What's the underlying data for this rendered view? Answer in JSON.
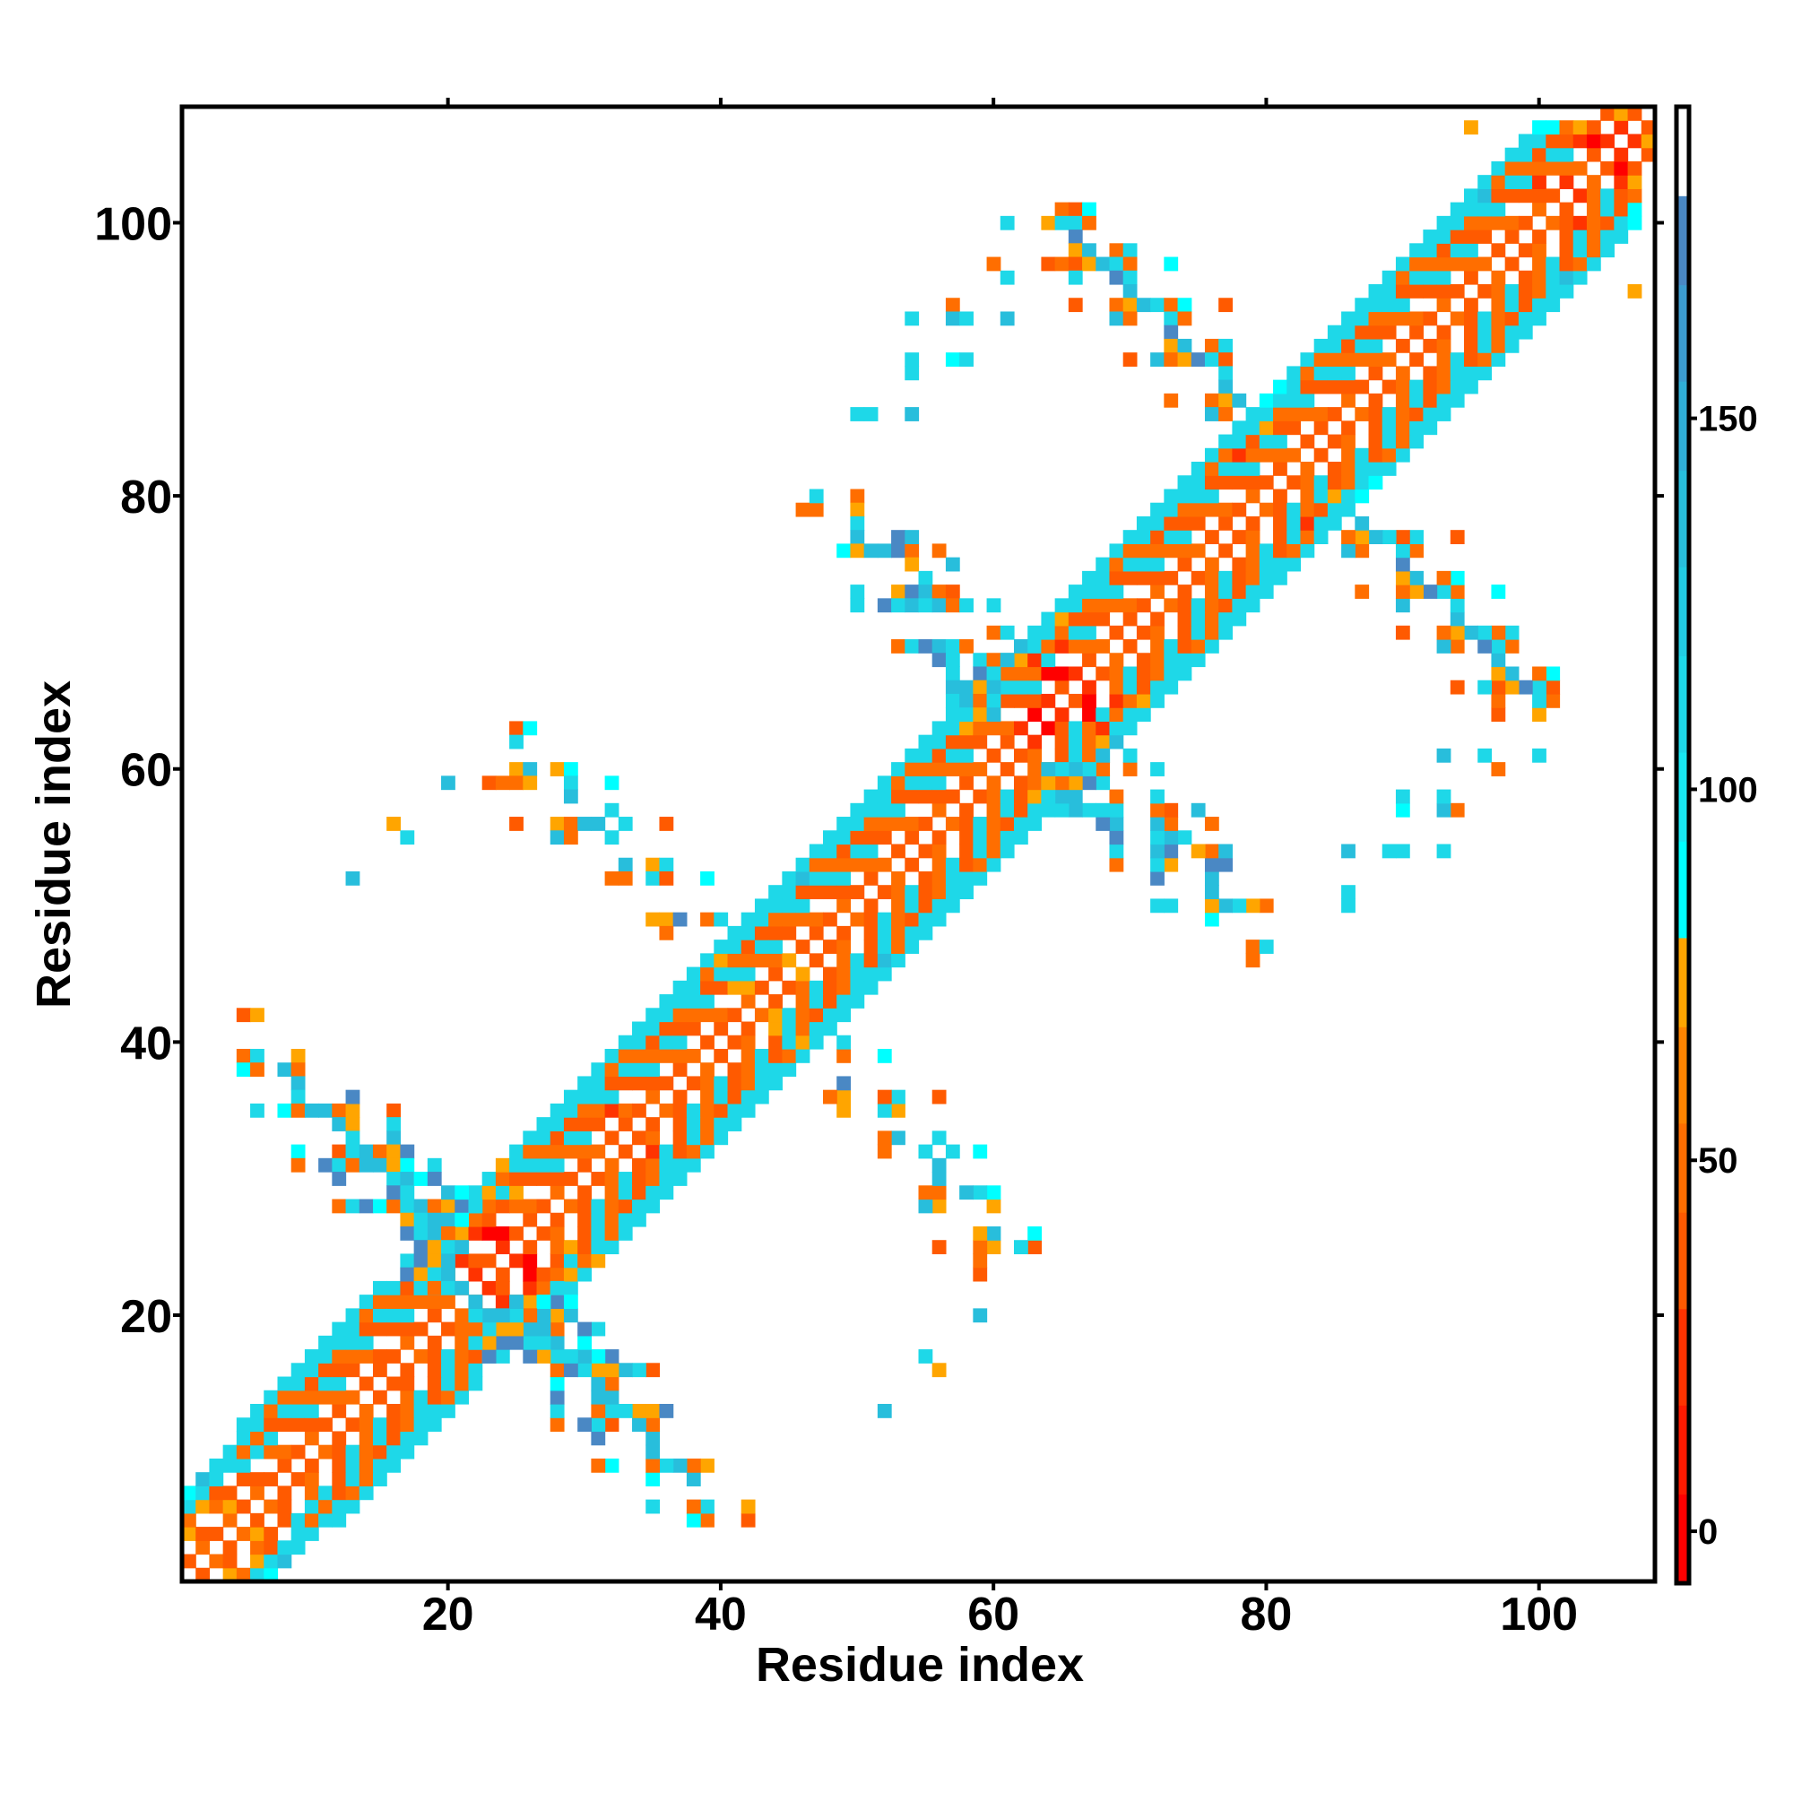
{
  "chart_data": {
    "type": "heatmap",
    "title": "",
    "xlabel": "Residue index",
    "ylabel": "Residue index",
    "xlim": [
      0.5,
      108.5
    ],
    "ylim": [
      0.5,
      108.5
    ],
    "xticks": [
      20,
      40,
      60,
      80,
      100
    ],
    "yticks": [
      20,
      40,
      60,
      80,
      100
    ],
    "symmetric": true,
    "grid": false,
    "colorbar": {
      "range": [
        -7,
        192
      ],
      "ticks": [
        0,
        50,
        100,
        150
      ],
      "bands": [
        {
          "from": -7,
          "to": 5,
          "color": "#ff0000"
        },
        {
          "from": 5,
          "to": 17,
          "color": "#ff1a00"
        },
        {
          "from": 17,
          "to": 30,
          "color": "#ff3300"
        },
        {
          "from": 30,
          "to": 43,
          "color": "#ff5a00"
        },
        {
          "from": 43,
          "to": 55,
          "color": "#ff6e00"
        },
        {
          "from": 55,
          "to": 68,
          "color": "#ff8400"
        },
        {
          "from": 68,
          "to": 80,
          "color": "#ffa500"
        },
        {
          "from": 80,
          "to": 93,
          "color": "#00ffff"
        },
        {
          "from": 93,
          "to": 105,
          "color": "#18e8f2"
        },
        {
          "from": 105,
          "to": 118,
          "color": "#1ed8e8"
        },
        {
          "from": 118,
          "to": 130,
          "color": "#22cce2"
        },
        {
          "from": 130,
          "to": 143,
          "color": "#28bedc"
        },
        {
          "from": 143,
          "to": 155,
          "color": "#30aed6"
        },
        {
          "from": 155,
          "to": 168,
          "color": "#3c9ccf"
        },
        {
          "from": 168,
          "to": 180,
          "color": "#4a88c4"
        },
        {
          "from": 180,
          "to": 192,
          "color": "#ffffff"
        }
      ]
    },
    "value_codes": {
      "R": 0,
      "r": 24,
      "o": 36,
      "O": 49,
      "y": 74,
      "c": 86,
      "t": 112,
      "s": 140,
      "b": 172
    },
    "band_note": "band[i-1][k] = value code at (i, i+k+1); '.' = no value",
    "band": [
      "o.yOtc.",
      "Oo.yts.",
      "o.Oott.",
      "Oyo.tt.",
      "o.otOtt",
      "Oo.tOtt",
      "o.OtoOt",
      "oO.otOt",
      "o.otOtt",
      "OotOott",
      "o.Otott",
      "oOtoOtt",
      "O.oOttt",
      "o.OtoOt",
      "oo.otOt",
      "o.otOt.",
      "OotOot.",
      "o.Otyt.",
      "oOtoyst",
      "O.oOtsb",
      "o.rOyts",
      "ro.rOtt",
      "o.RoOyt",
      "rR.otOy",
      "o.Oyott",
      "oO.otOt",
      "o.otOtt",
      "OotOott",
      "o.Otott",
      "oOtoOtt",
      "O.oOttt",
      "o.rtoOt",
      "oO.otOt",
      "o.otOtt",
      "OotOott",
      "o.Otott",
      "oOtoOtt",
      "O.oOttt",
      "o.OtoOt",
      "oO.otyt",
      "o.ytOtt",
      "OytOott",
      "o.Otott",
      "oOtoOtt",
      "y.oOttt",
      "o.Otost",
      "oO.otOt",
      "o.otOtt",
      "OotOott",
      "o.Otott",
      "oOtoOtt",
      "O.oOttt",
      "o.OtoOt",
      "oO.otOt",
      "o.otOtt",
      "OotOott",
      "o.Otott",
      "oOtoytt",
      "O.oOtst",
      "o.OyoOt",
      "oO.otOt",
      "r.otOys",
      "RotOrtt",
      "r.RtOtt",
      "oR.rOyt",
      "r.Otott",
      "oOtoOtt",
      "O.oOttt",
      "o.OtoOt",
      "oO.otOt",
      "o.otOtt",
      "OotOott",
      "o.Otott",
      "oOtoOtt",
      "O.oOttt",
      "o.OtoOt",
      "oO.otOt",
      "o.otrtt",
      "OotOott",
      "o.Otytc",
      "oOtoOtc",
      "O.oOttt",
      "o.OtoOt",
      "oO.otOt",
      "o.otOtt",
      "OotOott",
      "o.Otott",
      "oOtoOtt",
      "O.oOttt",
      "o.OtoOt",
      "oO.otOt",
      "o.otOtt",
      "OotOott",
      "o.Otott",
      "oOtoOtt",
      "O.oOtst",
      "o.OtoOt",
      "oO.otOt",
      "o.otOtt",
      "OorOotc",
      "o.Otoc",
      "rOtoO",
      "O.ry",
      "oRo",
      "r.o",
      "ry",
      "o"
    ],
    "contacts": [
      [
        25,
        63,
        "o"
      ],
      [
        26,
        63,
        "c"
      ],
      [
        25,
        62,
        "t"
      ],
      [
        25,
        60,
        "y"
      ],
      [
        26,
        60,
        "s"
      ],
      [
        28,
        60,
        "y"
      ],
      [
        29,
        60,
        "c"
      ],
      [
        20,
        59,
        "s"
      ],
      [
        23,
        59,
        "o"
      ],
      [
        24,
        59,
        "O"
      ],
      [
        25,
        59,
        "O"
      ],
      [
        26,
        59,
        "y"
      ],
      [
        29,
        59,
        "t"
      ],
      [
        32,
        59,
        "c"
      ],
      [
        29,
        58,
        "s"
      ],
      [
        16,
        56,
        "y"
      ],
      [
        17,
        55,
        "t"
      ],
      [
        25,
        56,
        "o"
      ],
      [
        28,
        56,
        "y"
      ],
      [
        29,
        56,
        "O"
      ],
      [
        30,
        56,
        "s"
      ],
      [
        31,
        56,
        "s"
      ],
      [
        32,
        57,
        "t"
      ],
      [
        33,
        56,
        "t"
      ],
      [
        36,
        56,
        "o"
      ],
      [
        28,
        55,
        "s"
      ],
      [
        29,
        55,
        "O"
      ],
      [
        32,
        55,
        "t"
      ],
      [
        13,
        52,
        "s"
      ],
      [
        33,
        53,
        "s"
      ],
      [
        32,
        52,
        "O"
      ],
      [
        33,
        52,
        "O"
      ],
      [
        35,
        53,
        "y"
      ],
      [
        36,
        53,
        "t"
      ],
      [
        35,
        52,
        "t"
      ],
      [
        36,
        52,
        "o"
      ],
      [
        39,
        52,
        "c"
      ],
      [
        35,
        49,
        "y"
      ],
      [
        36,
        49,
        "y"
      ],
      [
        37,
        49,
        "b"
      ],
      [
        36,
        48,
        "O"
      ],
      [
        39,
        49,
        "O"
      ],
      [
        40,
        49,
        "t"
      ],
      [
        5,
        42,
        "o"
      ],
      [
        6,
        42,
        "y"
      ],
      [
        5,
        39,
        "O"
      ],
      [
        6,
        39,
        "t"
      ],
      [
        9,
        39,
        "y"
      ],
      [
        5,
        38,
        "c"
      ],
      [
        6,
        38,
        "O"
      ],
      [
        8,
        38,
        "s"
      ],
      [
        9,
        38,
        "O"
      ],
      [
        9,
        37,
        "s"
      ],
      [
        9,
        36,
        "t"
      ],
      [
        6,
        35,
        "t"
      ],
      [
        8,
        35,
        "c"
      ],
      [
        9,
        35,
        "O"
      ],
      [
        10,
        35,
        "s"
      ],
      [
        11,
        35,
        "s"
      ],
      [
        12,
        35,
        "O"
      ],
      [
        13,
        35,
        "y"
      ],
      [
        16,
        35,
        "o"
      ],
      [
        13,
        36,
        "b"
      ],
      [
        12,
        34,
        "s"
      ],
      [
        13,
        34,
        "y"
      ],
      [
        16,
        34,
        "t"
      ],
      [
        13,
        33,
        "t"
      ],
      [
        16,
        33,
        "s"
      ],
      [
        9,
        32,
        "c"
      ],
      [
        12,
        32,
        "o"
      ],
      [
        13,
        32,
        "t"
      ],
      [
        14,
        32,
        "s"
      ],
      [
        15,
        32,
        "O"
      ],
      [
        16,
        32,
        "y"
      ],
      [
        17,
        32,
        "b"
      ],
      [
        9,
        31,
        "O"
      ],
      [
        11,
        31,
        "b"
      ],
      [
        12,
        31,
        "t"
      ],
      [
        13,
        31,
        "O"
      ],
      [
        14,
        31,
        "s"
      ],
      [
        15,
        31,
        "s"
      ],
      [
        16,
        31,
        "y"
      ],
      [
        17,
        31,
        "c"
      ],
      [
        19,
        31,
        "t"
      ],
      [
        12,
        30,
        "b"
      ],
      [
        16,
        30,
        "t"
      ],
      [
        17,
        30,
        "s"
      ],
      [
        18,
        30,
        "c"
      ],
      [
        19,
        30,
        "b"
      ],
      [
        12,
        28,
        "O"
      ],
      [
        13,
        28,
        "t"
      ],
      [
        14,
        28,
        "b"
      ],
      [
        15,
        28,
        "c"
      ],
      [
        16,
        28,
        "O"
      ],
      [
        17,
        28,
        "t"
      ],
      [
        18,
        28,
        "s"
      ],
      [
        19,
        28,
        "O"
      ],
      [
        20,
        28,
        "y"
      ],
      [
        21,
        28,
        "b"
      ],
      [
        22,
        28,
        "t"
      ],
      [
        16,
        29,
        "b"
      ],
      [
        17,
        29,
        "t"
      ],
      [
        20,
        29,
        "s"
      ],
      [
        21,
        29,
        "c"
      ],
      [
        17,
        27,
        "y"
      ],
      [
        18,
        27,
        "t"
      ],
      [
        19,
        27,
        "s"
      ],
      [
        20,
        27,
        "s"
      ],
      [
        21,
        27,
        "c"
      ],
      [
        17,
        26,
        "b"
      ],
      [
        18,
        26,
        "t"
      ],
      [
        19,
        26,
        "s"
      ],
      [
        20,
        26,
        "O"
      ],
      [
        18,
        25,
        "b"
      ],
      [
        19,
        25,
        "y"
      ],
      [
        20,
        25,
        "t"
      ],
      [
        21,
        25,
        "s"
      ],
      [
        17,
        24,
        "t"
      ],
      [
        18,
        24,
        "b"
      ],
      [
        19,
        24,
        "y"
      ],
      [
        20,
        24,
        "s"
      ],
      [
        17,
        23,
        "b"
      ],
      [
        18,
        23,
        "y"
      ],
      [
        19,
        23,
        "t"
      ],
      [
        20,
        23,
        "s"
      ],
      [
        18,
        22,
        "t"
      ],
      [
        19,
        22,
        "O"
      ],
      [
        20,
        22,
        "t"
      ],
      [
        21,
        22,
        "s"
      ],
      [
        61,
        100,
        "t"
      ],
      [
        61,
        96,
        "t"
      ],
      [
        60,
        97,
        "O"
      ],
      [
        65,
        101,
        "O"
      ],
      [
        66,
        101,
        "o"
      ],
      [
        67,
        101,
        "c"
      ],
      [
        64,
        100,
        "y"
      ],
      [
        65,
        100,
        "t"
      ],
      [
        66,
        100,
        "t"
      ],
      [
        67,
        100,
        "O"
      ],
      [
        66,
        99,
        "b"
      ],
      [
        66,
        98,
        "y"
      ],
      [
        67,
        98,
        "s"
      ],
      [
        69,
        98,
        "O"
      ],
      [
        70,
        98,
        "t"
      ],
      [
        64,
        97,
        "o"
      ],
      [
        65,
        97,
        "O"
      ],
      [
        66,
        97,
        "o"
      ],
      [
        67,
        97,
        "y"
      ],
      [
        68,
        97,
        "s"
      ],
      [
        69,
        97,
        "t"
      ],
      [
        70,
        97,
        "O"
      ],
      [
        73,
        97,
        "c"
      ],
      [
        66,
        96,
        "t"
      ],
      [
        69,
        96,
        "b"
      ],
      [
        70,
        96,
        "t"
      ],
      [
        70,
        95,
        "s"
      ],
      [
        66,
        94,
        "o"
      ],
      [
        69,
        94,
        "O"
      ],
      [
        70,
        94,
        "y"
      ],
      [
        71,
        94,
        "s"
      ],
      [
        72,
        94,
        "t"
      ],
      [
        73,
        94,
        "O"
      ],
      [
        74,
        94,
        "c"
      ],
      [
        77,
        94,
        "o"
      ],
      [
        69,
        93,
        "s"
      ],
      [
        70,
        93,
        "O"
      ],
      [
        73,
        93,
        "t"
      ],
      [
        74,
        93,
        "O"
      ],
      [
        73,
        92,
        "b"
      ],
      [
        73,
        91,
        "y"
      ],
      [
        74,
        91,
        "s"
      ],
      [
        76,
        91,
        "O"
      ],
      [
        77,
        91,
        "t"
      ],
      [
        70,
        90,
        "o"
      ],
      [
        72,
        90,
        "s"
      ],
      [
        73,
        90,
        "O"
      ],
      [
        74,
        90,
        "y"
      ],
      [
        75,
        90,
        "b"
      ],
      [
        76,
        90,
        "t"
      ],
      [
        77,
        90,
        "o"
      ],
      [
        77,
        89,
        "t"
      ],
      [
        77,
        88,
        "s"
      ],
      [
        73,
        87,
        "O"
      ],
      [
        76,
        87,
        "O"
      ],
      [
        77,
        87,
        "y"
      ],
      [
        78,
        87,
        "s"
      ],
      [
        76,
        86,
        "s"
      ],
      [
        77,
        86,
        "O"
      ],
      [
        54,
        93,
        "t"
      ],
      [
        57,
        94,
        "O"
      ],
      [
        57,
        93,
        "s"
      ],
      [
        58,
        93,
        "t"
      ],
      [
        61,
        93,
        "s"
      ],
      [
        54,
        90,
        "t"
      ],
      [
        54,
        89,
        "t"
      ],
      [
        57,
        90,
        "c"
      ],
      [
        58,
        90,
        "t"
      ],
      [
        50,
        86,
        "t"
      ],
      [
        51,
        86,
        "t"
      ],
      [
        54,
        86,
        "s"
      ],
      [
        95,
        107,
        "y"
      ],
      [
        46,
        79,
        "O"
      ],
      [
        47,
        79,
        "O"
      ],
      [
        47,
        80,
        "t"
      ],
      [
        50,
        80,
        "O"
      ],
      [
        50,
        79,
        "y"
      ],
      [
        50,
        78,
        "t"
      ],
      [
        50,
        77,
        "s"
      ],
      [
        49,
        76,
        "c"
      ],
      [
        50,
        76,
        "y"
      ],
      [
        51,
        76,
        "s"
      ],
      [
        52,
        76,
        "s"
      ],
      [
        53,
        76,
        "b"
      ],
      [
        54,
        76,
        "O"
      ],
      [
        56,
        76,
        "O"
      ],
      [
        53,
        77,
        "b"
      ],
      [
        54,
        77,
        "s"
      ],
      [
        54,
        75,
        "y"
      ],
      [
        57,
        75,
        "s"
      ],
      [
        55,
        74,
        "t"
      ],
      [
        50,
        73,
        "t"
      ],
      [
        53,
        73,
        "y"
      ],
      [
        54,
        73,
        "b"
      ],
      [
        55,
        73,
        "s"
      ],
      [
        56,
        73,
        "O"
      ],
      [
        57,
        73,
        "o"
      ],
      [
        50,
        72,
        "t"
      ],
      [
        52,
        72,
        "b"
      ],
      [
        53,
        72,
        "t"
      ],
      [
        54,
        72,
        "s"
      ],
      [
        55,
        72,
        "t"
      ],
      [
        56,
        72,
        "s"
      ],
      [
        57,
        72,
        "O"
      ],
      [
        58,
        72,
        "t"
      ],
      [
        60,
        72,
        "t"
      ],
      [
        53,
        69,
        "O"
      ],
      [
        54,
        69,
        "t"
      ],
      [
        55,
        69,
        "b"
      ],
      [
        56,
        69,
        "s"
      ],
      [
        57,
        69,
        "t"
      ],
      [
        58,
        69,
        "O"
      ],
      [
        60,
        70,
        "O"
      ],
      [
        61,
        70,
        "t"
      ],
      [
        56,
        68,
        "b"
      ],
      [
        57,
        68,
        "t"
      ],
      [
        59,
        68,
        "t"
      ],
      [
        60,
        68,
        "O"
      ],
      [
        61,
        68,
        "s"
      ],
      [
        57,
        67,
        "t"
      ],
      [
        59,
        67,
        "b"
      ],
      [
        60,
        67,
        "t"
      ],
      [
        57,
        66,
        "s"
      ],
      [
        58,
        66,
        "s"
      ],
      [
        59,
        66,
        "y"
      ],
      [
        60,
        66,
        "s"
      ],
      [
        57,
        65,
        "t"
      ],
      [
        58,
        65,
        "s"
      ],
      [
        59,
        65,
        "O"
      ],
      [
        60,
        65,
        "t"
      ],
      [
        58,
        64,
        "t"
      ],
      [
        59,
        64,
        "y"
      ],
      [
        60,
        64,
        "s"
      ]
    ]
  }
}
